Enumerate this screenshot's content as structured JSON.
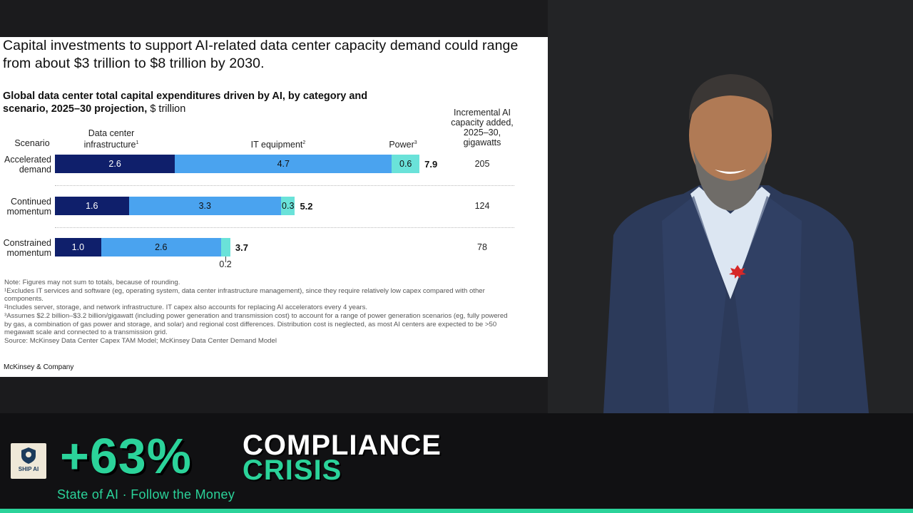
{
  "chart_data": {
    "type": "bar",
    "stacked": true,
    "orientation": "horizontal",
    "title": "Capital investments to support AI-related data center capacity demand could range from about $3 trillion to $8 trillion by 2030.",
    "subtitle_bold": "Global data center total capital expenditures driven by AI, by category and scenario, 2025–30 projection,",
    "subtitle_unit": " $ trillion",
    "scenario_header": "Scenario",
    "series_headers": [
      {
        "name": "Data center infrastructure",
        "note": "1"
      },
      {
        "name": "IT equipment",
        "note": "2"
      },
      {
        "name": "Power",
        "note": "3"
      }
    ],
    "incremental_header": "Incremental AI capacity added, 2025–30, gigawatts",
    "categories": [
      "Accelerated demand",
      "Continued momentum",
      "Constrained momentum"
    ],
    "series": [
      {
        "name": "Data center infrastructure",
        "values": [
          2.6,
          1.6,
          1.0
        ]
      },
      {
        "name": "IT equipment",
        "values": [
          4.7,
          3.3,
          2.6
        ]
      },
      {
        "name": "Power",
        "values": [
          0.6,
          0.3,
          0.2
        ]
      }
    ],
    "totals": [
      7.9,
      5.2,
      3.7
    ],
    "incremental_gw": [
      205,
      124,
      78
    ],
    "colors": {
      "data_center": "#0f1f6b",
      "it": "#4aa3ef",
      "power": "#6ae2d9"
    },
    "notes": [
      "Note: Figures may not sum to totals, because of rounding.",
      "¹Excludes IT services and software (eg, operating system, data center infrastructure management), since they require relatively low capex compared with other components.",
      "²Includes server, storage, and network infrastructure. IT capex also accounts for replacing AI accelerators every 4 years.",
      "³Assumes $2.2 billion–$3.2 billion/gigawatt (including power generation and transmission cost) to account for a range of power generation scenarios (eg, fully powered by gas, a combination of gas power and storage, and solar) and regional cost differences. Distribution cost is neglected, as most AI centers are expected to be >50 megawatt scale and connected to a transmission grid.",
      "Source: McKinsey Data Center Capex TAM Model; McKinsey Data Center Demand Model"
    ],
    "source_brand": "McKinsey & Company"
  },
  "lower_third": {
    "stat": "+63%",
    "line1": "COMPLIANCE",
    "line2": "CRISIS",
    "tagline": "State of AI · Follow the Money",
    "logo_text": "SHIP AI",
    "accent_color": "#2bd39a"
  },
  "speaker": {
    "pin_icon": "maple-leaf-icon"
  }
}
